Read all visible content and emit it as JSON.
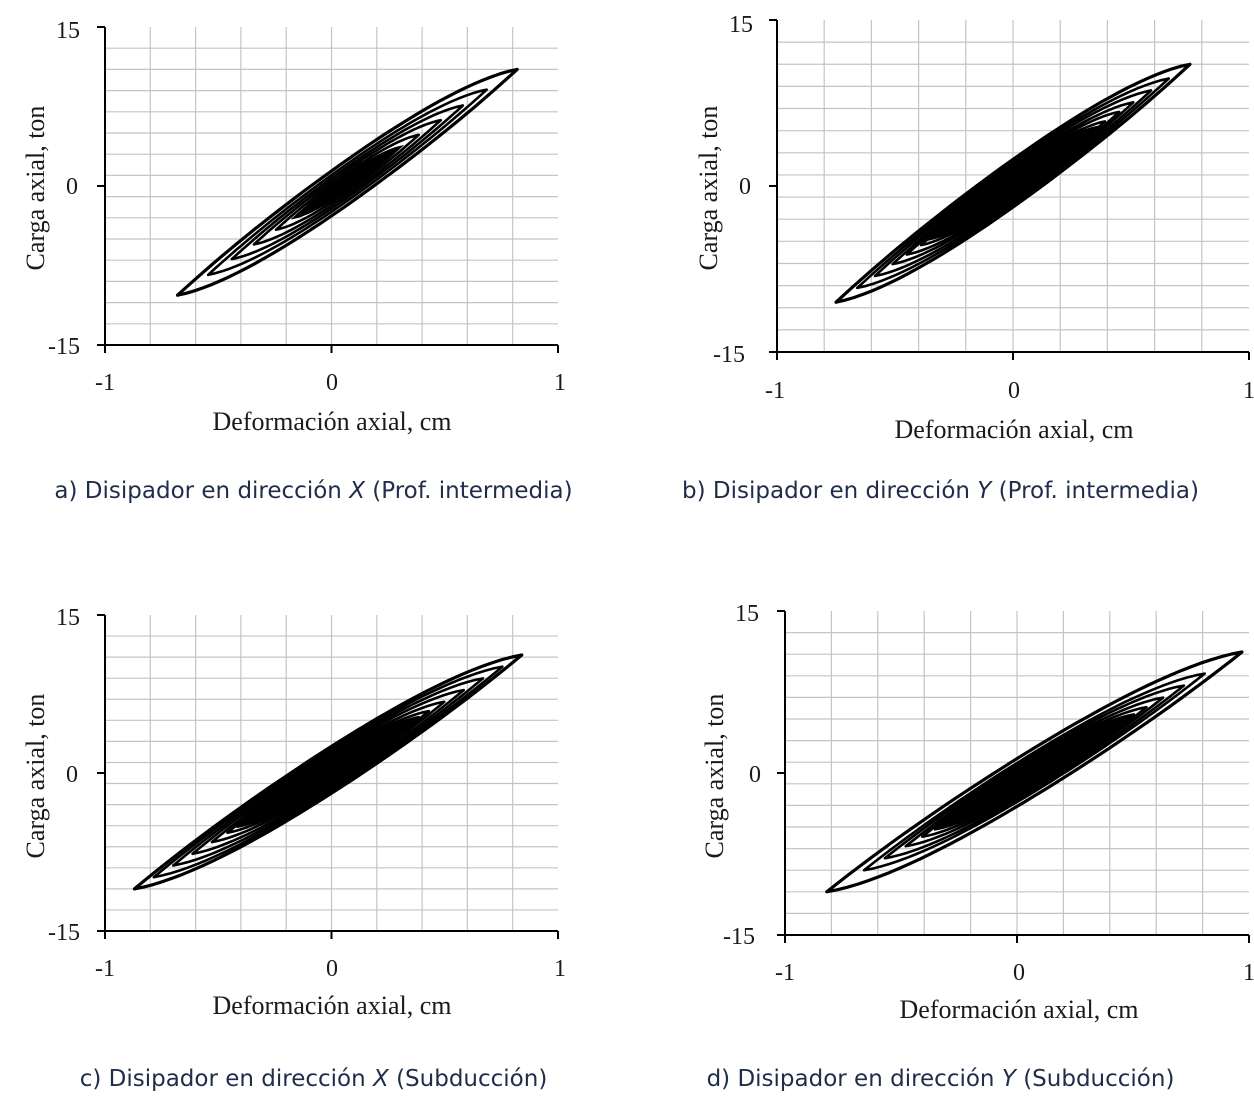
{
  "chart_data": [
    {
      "type": "line",
      "panel": "a",
      "caption": {
        "prefix": "a) Disipador en dirección",
        "axis": "X",
        "suffix": "(Prof. intermedia)"
      },
      "xlabel": "Deformación axial, cm",
      "ylabel": "Carga axial, ton",
      "xlim": [
        -1,
        1
      ],
      "ylim": [
        -15,
        15
      ],
      "xticks": [
        "-1",
        "0",
        "1"
      ],
      "yticks": [
        "15",
        "0",
        "-15"
      ],
      "grid": true,
      "legend": "none",
      "loop": {
        "d_min": -0.68,
        "d_max": 0.82,
        "f_min": -10.3,
        "f_max": 11.0,
        "inner_scale": [
          0.82,
          0.68,
          0.55,
          0.42,
          0.3
        ]
      },
      "series": [
        {
          "x": [
            -0.68,
            -0.35,
            0.0,
            0.3,
            0.55,
            0.82
          ],
          "y": [
            -10.3,
            -6.2,
            -1.5,
            3.4,
            7.2,
            11.0
          ]
        },
        {
          "x": [
            0.82,
            0.45,
            0.0,
            -0.3,
            -0.55,
            -0.68
          ],
          "y": [
            11.0,
            9.8,
            5.8,
            1.0,
            -4.2,
            -10.3
          ]
        }
      ]
    },
    {
      "type": "line",
      "panel": "b",
      "caption": {
        "prefix": "b) Disipador en dirección",
        "axis": "Y",
        "suffix": "(Prof. intermedia)"
      },
      "xlabel": "Deformación axial, cm",
      "ylabel": "Carga axial, ton",
      "xlim": [
        -1,
        1
      ],
      "ylim": [
        -15,
        15
      ],
      "xticks": [
        "-1",
        "0",
        "1"
      ],
      "yticks": [
        "15",
        "0",
        "-15"
      ],
      "grid": true,
      "legend": "none",
      "loop": {
        "d_min": -0.75,
        "d_max": 0.75,
        "f_min": -10.5,
        "f_max": 11.0,
        "inner_scale": [
          0.88,
          0.78,
          0.68,
          0.6,
          0.52,
          0.45
        ]
      },
      "series": [
        {
          "x": [
            -0.75,
            -0.4,
            0.0,
            0.35,
            0.75
          ],
          "y": [
            -10.5,
            -6.5,
            -1.2,
            4.5,
            11.0
          ]
        },
        {
          "x": [
            0.75,
            0.4,
            0.0,
            -0.35,
            -0.75
          ],
          "y": [
            11.0,
            9.6,
            5.2,
            -0.8,
            -10.5
          ]
        }
      ]
    },
    {
      "type": "line",
      "panel": "c",
      "caption": {
        "prefix": "c) Disipador en dirección",
        "axis": "X",
        "suffix": "(Subducción)"
      },
      "xlabel": "Deformación axial, cm",
      "ylabel": "Carga axial, ton",
      "xlim": [
        -1,
        1
      ],
      "ylim": [
        -15,
        15
      ],
      "xticks": [
        "-1",
        "0",
        "1"
      ],
      "yticks": [
        "15",
        "0",
        "-15"
      ],
      "grid": true,
      "legend": "none",
      "loop": {
        "d_min": -0.87,
        "d_max": 0.84,
        "f_min": -11.0,
        "f_max": 11.2,
        "inner_scale": [
          0.9,
          0.8,
          0.7,
          0.6,
          0.52,
          0.45
        ]
      },
      "series": [
        {
          "x": [
            -0.87,
            -0.4,
            0.0,
            0.4,
            0.84
          ],
          "y": [
            -11.0,
            -6.8,
            -1.4,
            4.6,
            11.2
          ]
        },
        {
          "x": [
            0.84,
            0.4,
            0.0,
            -0.4,
            -0.87
          ],
          "y": [
            11.2,
            9.8,
            5.6,
            -0.6,
            -11.0
          ]
        }
      ]
    },
    {
      "type": "line",
      "panel": "d",
      "caption": {
        "prefix": "d) Disipador en dirección",
        "axis": "Y",
        "suffix": "(Subducción)"
      },
      "xlabel": "Deformación axial, cm",
      "ylabel": "Carga axial, ton",
      "xlim": [
        -1,
        1
      ],
      "ylim": [
        -15,
        15
      ],
      "xticks": [
        "-1",
        "0",
        "1"
      ],
      "yticks": [
        "15",
        "0",
        "-15"
      ],
      "grid": true,
      "legend": "none",
      "loop": {
        "d_min": -0.82,
        "d_max": 0.97,
        "f_min": -11.0,
        "f_max": 11.2,
        "inner_scale": [
          0.82,
          0.72,
          0.62,
          0.54,
          0.46
        ]
      },
      "series": [
        {
          "x": [
            -0.82,
            -0.4,
            0.0,
            0.5,
            0.97
          ],
          "y": [
            -11.0,
            -7.2,
            -2.6,
            3.8,
            11.2
          ]
        },
        {
          "x": [
            0.97,
            0.5,
            0.0,
            -0.4,
            -0.82
          ],
          "y": [
            11.2,
            10.6,
            6.6,
            -1.0,
            -11.0
          ]
        }
      ]
    }
  ]
}
